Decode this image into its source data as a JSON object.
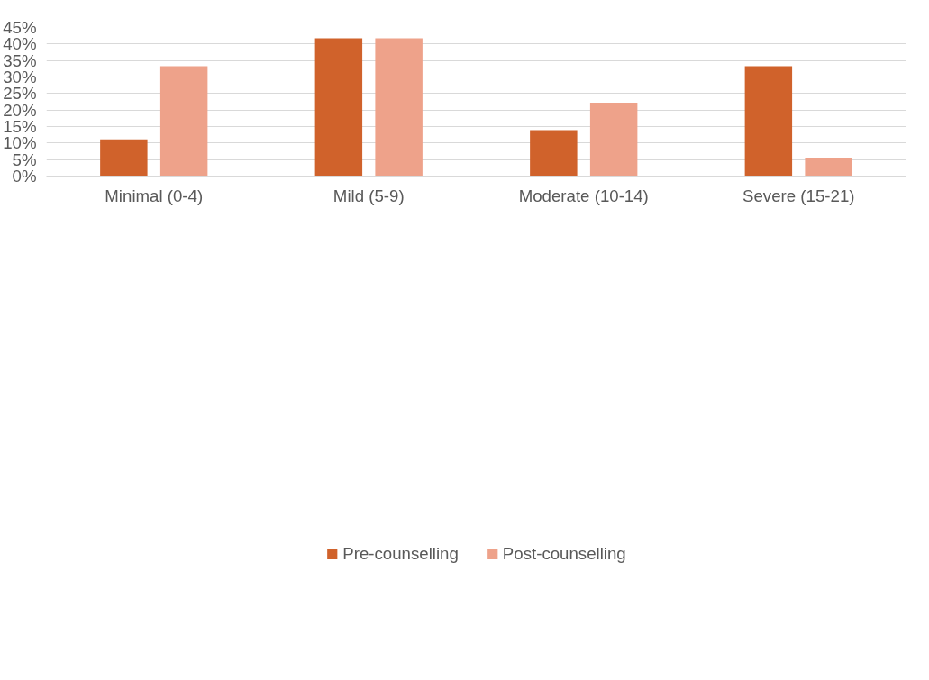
{
  "chart_data": {
    "type": "bar",
    "categories": [
      "Minimal (0-4)",
      "Mild (5-9)",
      "Moderate (10-14)",
      "Severe (15-21)"
    ],
    "series": [
      {
        "name": "Pre-counselling",
        "color": "#d0622b",
        "values": [
          11.1,
          41.7,
          13.9,
          33.3
        ]
      },
      {
        "name": "Post-counselling",
        "color": "#eea28a",
        "values": [
          33.3,
          41.7,
          22.2,
          5.6
        ]
      }
    ],
    "ylim": [
      0,
      45
    ],
    "yticks": [
      {
        "value": 0,
        "label": "0%"
      },
      {
        "value": 5,
        "label": "5%"
      },
      {
        "value": 10,
        "label": "10%"
      },
      {
        "value": 15,
        "label": "15%"
      },
      {
        "value": 20,
        "label": "20%"
      },
      {
        "value": 25,
        "label": "25%"
      },
      {
        "value": 30,
        "label": "30%"
      },
      {
        "value": 35,
        "label": "35%"
      },
      {
        "value": 40,
        "label": "40%"
      },
      {
        "value": 45,
        "label": "45%"
      }
    ],
    "grid": "y",
    "legend": "bottom"
  }
}
